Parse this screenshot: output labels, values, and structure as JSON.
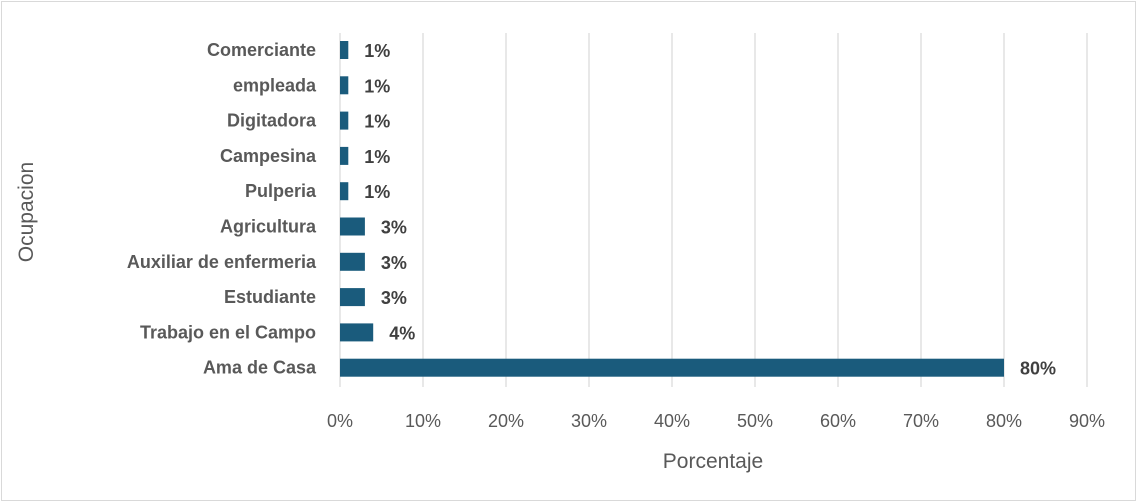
{
  "chart_data": {
    "type": "bar",
    "orientation": "horizontal",
    "categories": [
      "Comerciante",
      "empleada",
      "Digitadora",
      "Campesina",
      "Pulperia",
      "Agricultura",
      "Auxiliar de enfermeria",
      "Estudiante",
      "Trabajo en el Campo",
      "Ama de Casa"
    ],
    "values": [
      1,
      1,
      1,
      1,
      1,
      3,
      3,
      3,
      4,
      80
    ],
    "data_labels": [
      "1%",
      "1%",
      "1%",
      "1%",
      "1%",
      "3%",
      "3%",
      "3%",
      "4%",
      "80%"
    ],
    "xticks": [
      "0%",
      "10%",
      "20%",
      "30%",
      "40%",
      "50%",
      "60%",
      "70%",
      "80%",
      "90%"
    ],
    "xlim": [
      0,
      90
    ],
    "xlabel": "Porcentaje",
    "ylabel": "Ocupacion",
    "grid": true,
    "bar_color": "#1a5b7c"
  }
}
